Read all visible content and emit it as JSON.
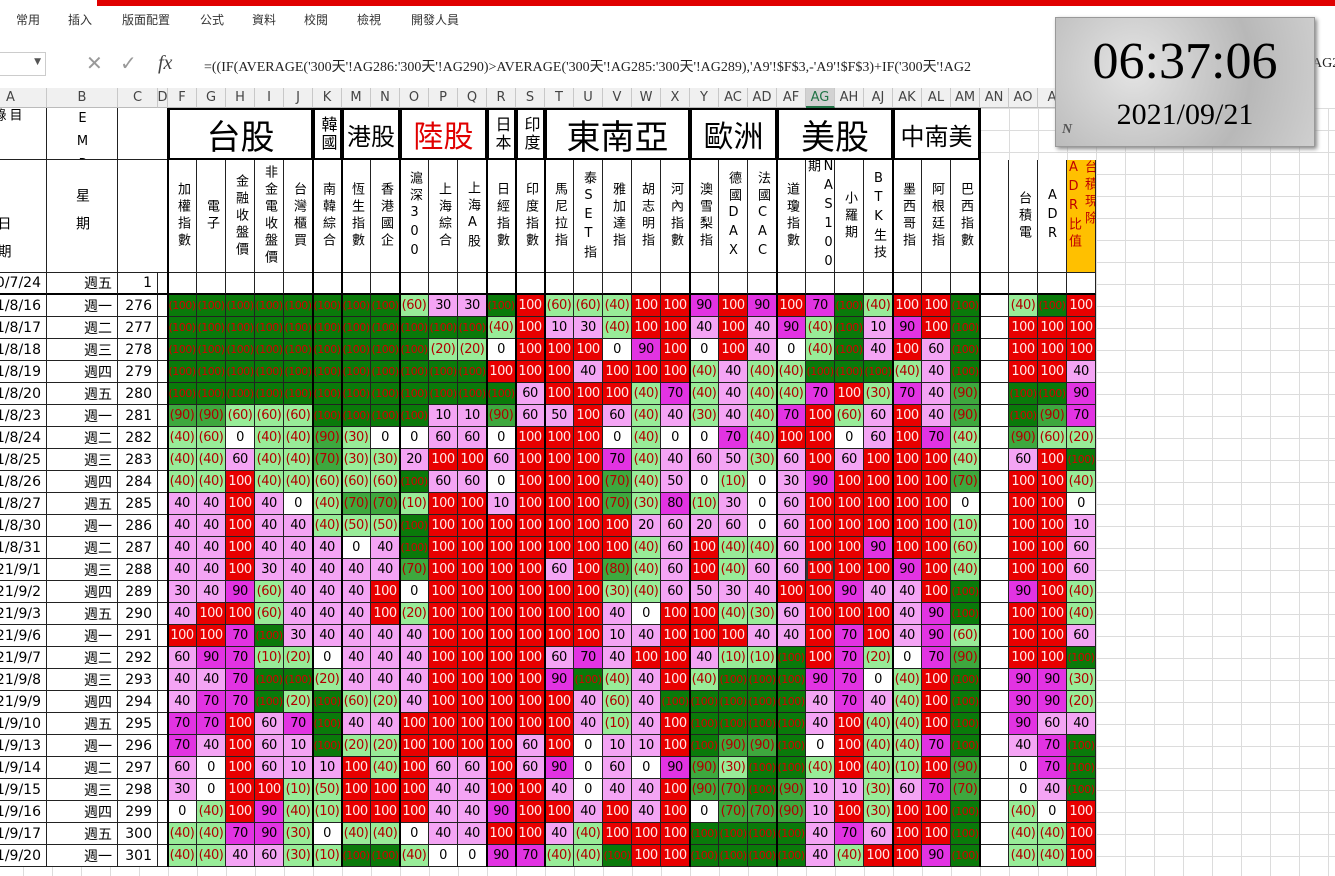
{
  "ribbon": {
    "tabs": [
      "常用",
      "插入",
      "版面配置",
      "公式",
      "資料",
      "校閱",
      "檢視",
      "開發人員"
    ]
  },
  "formula_bar": {
    "fx": "fx",
    "formula": "=((IF(AVERAGE('300天'!AG286:'300天'!AG290)>AVERAGE('300天'!AG285:'300天'!AG289),'A9'!$F$3,-'A9'!$F$3)+IF('300天'!AG2",
    "tail": "AG2"
  },
  "clock": {
    "time": "06:37:06",
    "date": "2021/09/21",
    "mark": "N"
  },
  "sheet": {
    "column_letters": [
      "A",
      "B",
      "C",
      "D",
      "F",
      "G",
      "H",
      "I",
      "J",
      "K",
      "M",
      "N",
      "O",
      "P",
      "Q",
      "R",
      "S",
      "T",
      "U",
      "V",
      "W",
      "X",
      "Y",
      "AC",
      "AD",
      "AF",
      "AG",
      "AH",
      "AJ",
      "AK",
      "AL",
      "AM",
      "AN",
      "AO",
      "A"
    ],
    "a1": "目錄!",
    "b1": "TEMP",
    "a2": "日期",
    "b2": "星期",
    "groups": [
      "台股",
      "韓國",
      "港股",
      "陸股",
      "日本",
      "印度",
      "東南亞",
      "歐洲",
      "美股",
      "中南美"
    ],
    "names": [
      "加權指數",
      "電子",
      "金融收盤價",
      "非金電收盤價",
      "台灣櫃買",
      "南韓綜合",
      "恆生指數",
      "香港國企",
      "滬深300",
      "上海綜合",
      "上海A股",
      "日經指數",
      "印度指數",
      "馬尼拉指",
      "泰SET指",
      "雅加達指",
      "胡志明指",
      "河內指數",
      "澳雪梨指",
      "德國DAX",
      "法國CAC",
      "道瓊指數",
      "NAS100期",
      "小羅期",
      "BTK生技",
      "墨西哥指",
      "阿根廷指",
      "巴西指數",
      null,
      "台積電",
      "ADR",
      "台積現除ADR比值"
    ],
    "rows": [
      {
        "date": "20/7/24",
        "weekday": "週五",
        "n": 1
      },
      {
        "date": "21/8/16",
        "weekday": "週一",
        "n": 276,
        "cells": [
          "(100)",
          "(100)",
          "(100)",
          "(100)",
          "(100)",
          "(100)",
          "(100)",
          "(100)",
          "(60)",
          "30",
          "30",
          "(100)",
          "100",
          "(60)",
          "(60)",
          "(40)",
          "100",
          "100",
          "90",
          "100",
          "90",
          "100",
          "70",
          "(100)",
          "(40)",
          "100",
          "100",
          "(100)",
          null,
          "(40)",
          "(100)",
          "100"
        ]
      },
      {
        "date": "21/8/17",
        "weekday": "週二",
        "n": 277,
        "cells": [
          "(100)",
          "(100)",
          "(100)",
          "(100)",
          "(100)",
          "(100)",
          "(100)",
          "(100)",
          "(100)",
          "(100)",
          "(100)",
          "(40)",
          "100",
          "10",
          "30",
          "(40)",
          "100",
          "100",
          "40",
          "100",
          "40",
          "90",
          "(40)",
          "(100)",
          "10",
          "90",
          "100",
          "(100)",
          null,
          "100",
          "100",
          "100"
        ]
      },
      {
        "date": "21/8/18",
        "weekday": "週三",
        "n": 278,
        "cells": [
          "(100)",
          "(100)",
          "(100)",
          "(100)",
          "(100)",
          "(100)",
          "(100)",
          "(100)",
          "(100)",
          "(20)",
          "(20)",
          "0",
          "100",
          "100",
          "100",
          "0",
          "90",
          "100",
          "0",
          "100",
          "40",
          "0",
          "(40)",
          "(100)",
          "40",
          "100",
          "60",
          "(100)",
          null,
          "100",
          "100",
          "100"
        ]
      },
      {
        "date": "21/8/19",
        "weekday": "週四",
        "n": 279,
        "cells": [
          "(100)",
          "(100)",
          "(100)",
          "(100)",
          "(100)",
          "(100)",
          "(100)",
          "(100)",
          "(100)",
          "(100)",
          "(100)",
          "100",
          "100",
          "100",
          "40",
          "100",
          "100",
          "100",
          "(40)",
          "40",
          "(40)",
          "(40)",
          "(100)",
          "(100)",
          "(100)",
          "(40)",
          "40",
          "(100)",
          null,
          "100",
          "100",
          "40"
        ]
      },
      {
        "date": "21/8/20",
        "weekday": "週五",
        "n": 280,
        "cells": [
          "(100)",
          "(100)",
          "(100)",
          "(100)",
          "(100)",
          "(100)",
          "(100)",
          "(100)",
          "(100)",
          "(100)",
          "(100)",
          "(100)",
          "60",
          "100",
          "100",
          "100",
          "(40)",
          "70",
          "(40)",
          "40",
          "(40)",
          "(40)",
          "70",
          "100",
          "(30)",
          "70",
          "40",
          "(90)",
          null,
          "(100)",
          "(100)",
          "90"
        ]
      },
      {
        "date": "21/8/23",
        "weekday": "週一",
        "n": 281,
        "cells": [
          "(90)",
          "(90)",
          "(60)",
          "(60)",
          "(60)",
          "(100)",
          "(100)",
          "(100)",
          "(100)",
          "10",
          "10",
          "(90)",
          "60",
          "50",
          "100",
          "60",
          "(40)",
          "40",
          "(30)",
          "40",
          "(40)",
          "70",
          "100",
          "(60)",
          "60",
          "100",
          "40",
          "(90)",
          null,
          "(100)",
          "(90)",
          "70"
        ]
      },
      {
        "date": "21/8/24",
        "weekday": "週二",
        "n": 282,
        "cells": [
          "(40)",
          "(60)",
          "0",
          "(40)",
          "(40)",
          "(90)",
          "(30)",
          "0",
          "0",
          "60",
          "60",
          "0",
          "100",
          "100",
          "100",
          "0",
          "(40)",
          "0",
          "0",
          "70",
          "(40)",
          "100",
          "100",
          "0",
          "60",
          "100",
          "70",
          "(40)",
          null,
          "(90)",
          "(60)",
          "(20)"
        ]
      },
      {
        "date": "21/8/25",
        "weekday": "週三",
        "n": 283,
        "cells": [
          "(40)",
          "(40)",
          "60",
          "(40)",
          "(40)",
          "(70)",
          "(30)",
          "(30)",
          "20",
          "100",
          "100",
          "60",
          "100",
          "100",
          "100",
          "70",
          "(40)",
          "40",
          "60",
          "50",
          "(30)",
          "60",
          "100",
          "60",
          "100",
          "100",
          "100",
          "(40)",
          null,
          "60",
          "100",
          "(100)"
        ]
      },
      {
        "date": "21/8/26",
        "weekday": "週四",
        "n": 284,
        "cells": [
          "(40)",
          "(40)",
          "100",
          "(40)",
          "(40)",
          "(60)",
          "(60)",
          "(60)",
          "(100)",
          "60",
          "60",
          "0",
          "100",
          "100",
          "100",
          "(70)",
          "(40)",
          "50",
          "0",
          "(10)",
          "0",
          "30",
          "90",
          "100",
          "100",
          "100",
          "100",
          "(70)",
          null,
          "100",
          "100",
          "(40)"
        ]
      },
      {
        "date": "21/8/27",
        "weekday": "週五",
        "n": 285,
        "cells": [
          "40",
          "40",
          "100",
          "40",
          "0",
          "(40)",
          "(70)",
          "(70)",
          "(10)",
          "100",
          "100",
          "10",
          "100",
          "100",
          "100",
          "(70)",
          "(30)",
          "80",
          "(10)",
          "30",
          "0",
          "60",
          "100",
          "100",
          "100",
          "100",
          "100",
          "0",
          null,
          "100",
          "100",
          "0"
        ]
      },
      {
        "date": "21/8/30",
        "weekday": "週一",
        "n": 286,
        "cells": [
          "40",
          "40",
          "100",
          "40",
          "40",
          "(40)",
          "(50)",
          "(50)",
          "(100)",
          "100",
          "100",
          "100",
          "100",
          "100",
          "100",
          "100",
          "20",
          "60",
          "20",
          "60",
          "0",
          "60",
          "100",
          "100",
          "100",
          "100",
          "100",
          "(10)",
          null,
          "100",
          "100",
          "10"
        ]
      },
      {
        "date": "21/8/31",
        "weekday": "週二",
        "n": 287,
        "cells": [
          "40",
          "40",
          "100",
          "40",
          "40",
          "40",
          "0",
          "40",
          "(100)",
          "100",
          "100",
          "100",
          "100",
          "100",
          "100",
          "100",
          "(40)",
          "60",
          "100",
          "(40)",
          "(40)",
          "60",
          "100",
          "100",
          "90",
          "100",
          "100",
          "(60)",
          null,
          "100",
          "100",
          "60"
        ]
      },
      {
        "date": "021/9/1",
        "weekday": "週三",
        "n": 288,
        "cells": [
          "40",
          "40",
          "100",
          "30",
          "40",
          "40",
          "40",
          "40",
          "(70)",
          "100",
          "100",
          "100",
          "100",
          "60",
          "100",
          "(80)",
          "(40)",
          "60",
          "100",
          "(40)",
          "60",
          "60",
          "100",
          "100",
          "100",
          "90",
          "100",
          "(40)",
          null,
          "100",
          "100",
          "60"
        ]
      },
      {
        "date": "021/9/2",
        "weekday": "週四",
        "n": 289,
        "cells": [
          "30",
          "40",
          "90",
          "(60)",
          "40",
          "40",
          "40",
          "100",
          "0",
          "100",
          "100",
          "100",
          "100",
          "100",
          "100",
          "(30)",
          "(40)",
          "60",
          "50",
          "30",
          "40",
          "100",
          "100",
          "90",
          "40",
          "40",
          "100",
          "(100)",
          null,
          "90",
          "100",
          "(40)"
        ]
      },
      {
        "date": "021/9/3",
        "weekday": "週五",
        "n": 290,
        "cells": [
          "40",
          "100",
          "100",
          "(60)",
          "40",
          "40",
          "40",
          "100",
          "(20)",
          "100",
          "100",
          "100",
          "100",
          "100",
          "100",
          "40",
          "0",
          "100",
          "100",
          "(40)",
          "(30)",
          "60",
          "100",
          "100",
          "100",
          "40",
          "90",
          "(100)",
          null,
          "100",
          "100",
          "(40)"
        ]
      },
      {
        "date": "021/9/6",
        "weekday": "週一",
        "n": 291,
        "cells": [
          "100",
          "100",
          "70",
          "(100)",
          "30",
          "40",
          "40",
          "40",
          "40",
          "100",
          "100",
          "100",
          "100",
          "100",
          "100",
          "10",
          "40",
          "100",
          "100",
          "100",
          "40",
          "40",
          "100",
          "70",
          "100",
          "40",
          "90",
          "(60)",
          null,
          "100",
          "100",
          "60"
        ]
      },
      {
        "date": "021/9/7",
        "weekday": "週二",
        "n": 292,
        "cells": [
          "60",
          "90",
          "70",
          "(10)",
          "(20)",
          "0",
          "40",
          "40",
          "40",
          "100",
          "100",
          "100",
          "100",
          "60",
          "70",
          "40",
          "100",
          "100",
          "40",
          "(10)",
          "(10)",
          "(100)",
          "100",
          "70",
          "(20)",
          "0",
          "70",
          "(90)",
          null,
          "100",
          "100",
          "(100)"
        ]
      },
      {
        "date": "021/9/8",
        "weekday": "週三",
        "n": 293,
        "cells": [
          "40",
          "40",
          "70",
          "(100)",
          "(100)",
          "(20)",
          "40",
          "40",
          "40",
          "100",
          "100",
          "100",
          "100",
          "90",
          "(100)",
          "(40)",
          "40",
          "100",
          "(40)",
          "(100)",
          "(100)",
          "(100)",
          "90",
          "70",
          "0",
          "(40)",
          "100",
          "(100)",
          null,
          "90",
          "90",
          "(30)"
        ]
      },
      {
        "date": "021/9/9",
        "weekday": "週四",
        "n": 294,
        "cells": [
          "40",
          "70",
          "70",
          "(100)",
          "(20)",
          "(100)",
          "(60)",
          "(20)",
          "40",
          "100",
          "100",
          "100",
          "100",
          "100",
          "40",
          "(60)",
          "40",
          "(100)",
          "(100)",
          "(100)",
          "(100)",
          "(100)",
          "40",
          "70",
          "40",
          "(40)",
          "100",
          "(100)",
          null,
          "90",
          "90",
          "(20)"
        ]
      },
      {
        "date": "21/9/10",
        "weekday": "週五",
        "n": 295,
        "cells": [
          "70",
          "70",
          "100",
          "60",
          "70",
          "(100)",
          "40",
          "40",
          "100",
          "100",
          "100",
          "100",
          "100",
          "100",
          "40",
          "(10)",
          "40",
          "100",
          "(100)",
          "(100)",
          "(100)",
          "(100)",
          "40",
          "100",
          "(40)",
          "(40)",
          "100",
          "(100)",
          null,
          "90",
          "60",
          "40"
        ]
      },
      {
        "date": "21/9/13",
        "weekday": "週一",
        "n": 296,
        "cells": [
          "70",
          "40",
          "100",
          "60",
          "10",
          "(100)",
          "(20)",
          "(20)",
          "100",
          "100",
          "100",
          "100",
          "60",
          "100",
          "0",
          "10",
          "10",
          "100",
          "(100)",
          "(90)",
          "(90)",
          "(100)",
          "0",
          "100",
          "(40)",
          "(40)",
          "70",
          "(100)",
          null,
          "40",
          "70",
          "(100)"
        ]
      },
      {
        "date": "21/9/14",
        "weekday": "週二",
        "n": 297,
        "cells": [
          "60",
          "0",
          "100",
          "60",
          "10",
          "10",
          "100",
          "(40)",
          "100",
          "60",
          "60",
          "100",
          "60",
          "90",
          "0",
          "60",
          "0",
          "90",
          "(90)",
          "(30)",
          "(100)",
          "(100)",
          "(40)",
          "100",
          "(40)",
          "(10)",
          "100",
          "(90)",
          null,
          "0",
          "70",
          "(100)"
        ]
      },
      {
        "date": "21/9/15",
        "weekday": "週三",
        "n": 298,
        "cells": [
          "30",
          "0",
          "100",
          "100",
          "(10)",
          "(50)",
          "100",
          "100",
          "100",
          "40",
          "40",
          "100",
          "100",
          "40",
          "0",
          "40",
          "40",
          "100",
          "(90)",
          "(70)",
          "(100)",
          "(90)",
          "10",
          "10",
          "(30)",
          "60",
          "70",
          "(70)",
          null,
          "0",
          "40",
          "(100)"
        ]
      },
      {
        "date": "21/9/16",
        "weekday": "週四",
        "n": 299,
        "cells": [
          "0",
          "(40)",
          "100",
          "90",
          "(40)",
          "(10)",
          "100",
          "100",
          "100",
          "40",
          "40",
          "90",
          "100",
          "100",
          "40",
          "100",
          "40",
          "100",
          "0",
          "(70)",
          "(70)",
          "(90)",
          "10",
          "100",
          "(30)",
          "100",
          "100",
          "(100)",
          null,
          "(40)",
          "0",
          "100"
        ]
      },
      {
        "date": "21/9/17",
        "weekday": "週五",
        "n": 300,
        "cells": [
          "(40)",
          "(40)",
          "70",
          "90",
          "(30)",
          "0",
          "(40)",
          "(40)",
          "0",
          "40",
          "40",
          "100",
          "100",
          "40",
          "(40)",
          "100",
          "100",
          "100",
          "(100)",
          "(100)",
          "(100)",
          "(100)",
          "40",
          "70",
          "60",
          "100",
          "100",
          "(100)",
          null,
          "(40)",
          "(40)",
          "100"
        ]
      },
      {
        "date": "21/9/20",
        "weekday": "週一",
        "n": 301,
        "cells": [
          "(40)",
          "(40)",
          "40",
          "60",
          "(30)",
          "(10)",
          "(100)",
          "(100)",
          "(40)",
          "0",
          "0",
          "90",
          "70",
          "(40)",
          "(40)",
          "(100)",
          "100",
          "100",
          "(100)",
          "(100)",
          "(100)",
          "(100)",
          "40",
          "(40)",
          "100",
          "100",
          "90",
          "(100)",
          null,
          "(40)",
          "(40)",
          "100"
        ]
      }
    ]
  }
}
